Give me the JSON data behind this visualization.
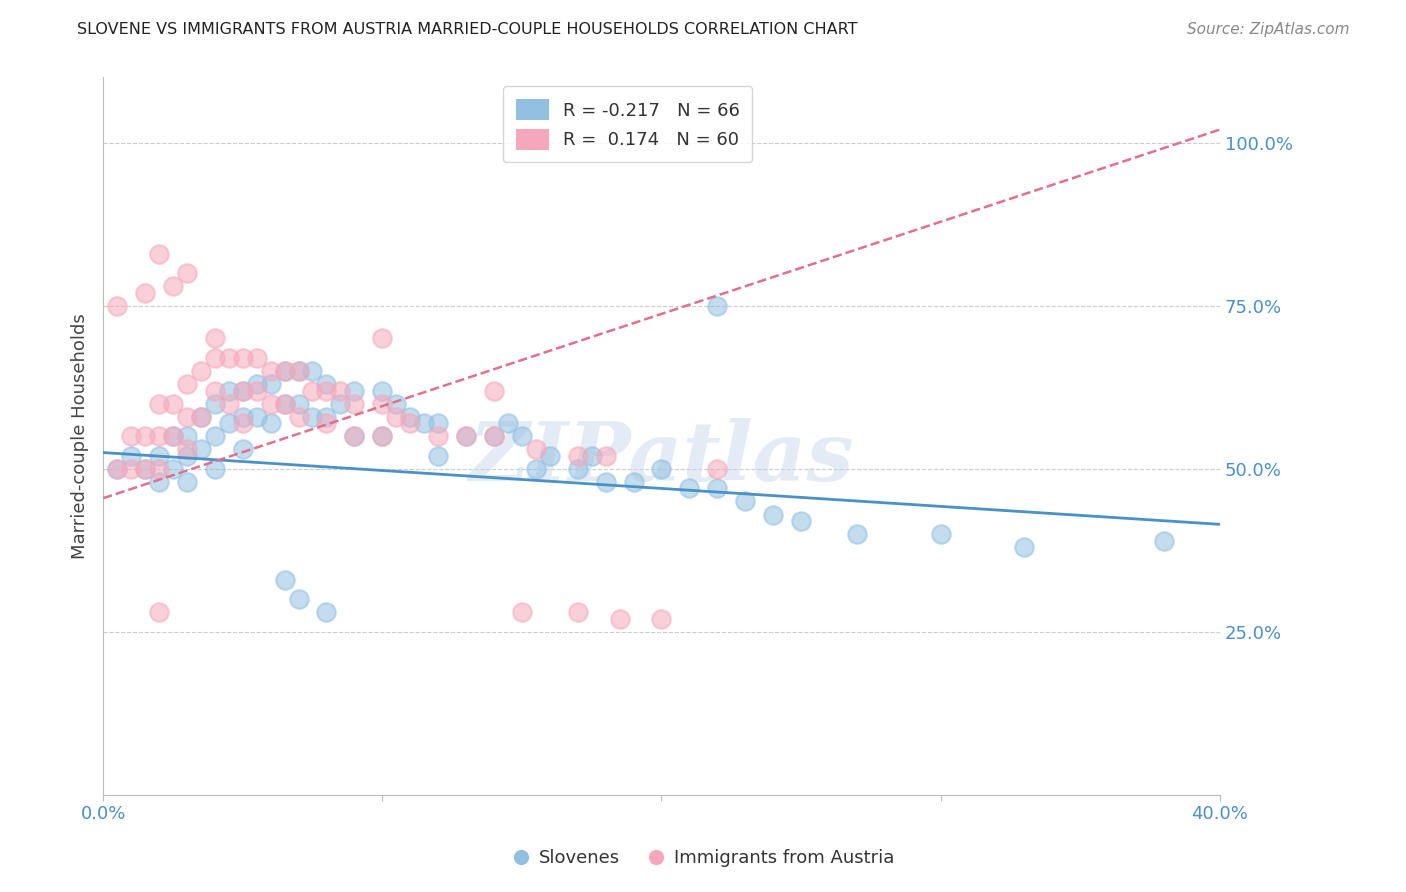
{
  "title": "SLOVENE VS IMMIGRANTS FROM AUSTRIA MARRIED-COUPLE HOUSEHOLDS CORRELATION CHART",
  "source": "Source: ZipAtlas.com",
  "ylabel": "Married-couple Households",
  "ylabel_right_ticks": [
    "100.0%",
    "75.0%",
    "50.0%",
    "25.0%"
  ],
  "ylabel_right_vals": [
    1.0,
    0.75,
    0.5,
    0.25
  ],
  "xlim": [
    0.0,
    0.4
  ],
  "ylim": [
    0.0,
    1.1
  ],
  "legend_blue_r": "-0.217",
  "legend_blue_n": "66",
  "legend_pink_r": "0.174",
  "legend_pink_n": "60",
  "blue_color": "#92C0E0",
  "pink_color": "#F5A8BB",
  "blue_line_color": "#4A90C9",
  "pink_line_color": "#E07090",
  "grid_color": "#CCCCCC",
  "watermark_text": "ZIPatlas",
  "blue_trend_x0": 0.0,
  "blue_trend_x1": 0.4,
  "blue_trend_y0": 0.525,
  "blue_trend_y1": 0.415,
  "pink_trend_x0": 0.0,
  "pink_trend_x1": 0.4,
  "pink_trend_y0": 0.455,
  "pink_trend_y1": 1.02,
  "blue_scatter_x": [
    0.005,
    0.01,
    0.015,
    0.02,
    0.02,
    0.025,
    0.025,
    0.03,
    0.03,
    0.03,
    0.035,
    0.035,
    0.04,
    0.04,
    0.04,
    0.045,
    0.045,
    0.05,
    0.05,
    0.05,
    0.055,
    0.055,
    0.06,
    0.06,
    0.065,
    0.065,
    0.07,
    0.07,
    0.075,
    0.075,
    0.08,
    0.08,
    0.085,
    0.09,
    0.09,
    0.1,
    0.1,
    0.105,
    0.11,
    0.115,
    0.12,
    0.12,
    0.13,
    0.14,
    0.145,
    0.15,
    0.155,
    0.16,
    0.17,
    0.175,
    0.18,
    0.19,
    0.2,
    0.21,
    0.22,
    0.23,
    0.24,
    0.25,
    0.27,
    0.3,
    0.33,
    0.38,
    0.22,
    0.065,
    0.07,
    0.08
  ],
  "blue_scatter_y": [
    0.5,
    0.52,
    0.5,
    0.52,
    0.48,
    0.55,
    0.5,
    0.55,
    0.52,
    0.48,
    0.58,
    0.53,
    0.6,
    0.55,
    0.5,
    0.62,
    0.57,
    0.62,
    0.58,
    0.53,
    0.63,
    0.58,
    0.63,
    0.57,
    0.65,
    0.6,
    0.65,
    0.6,
    0.65,
    0.58,
    0.63,
    0.58,
    0.6,
    0.62,
    0.55,
    0.62,
    0.55,
    0.6,
    0.58,
    0.57,
    0.57,
    0.52,
    0.55,
    0.55,
    0.57,
    0.55,
    0.5,
    0.52,
    0.5,
    0.52,
    0.48,
    0.48,
    0.5,
    0.47,
    0.47,
    0.45,
    0.43,
    0.42,
    0.4,
    0.4,
    0.38,
    0.39,
    0.75,
    0.33,
    0.3,
    0.28
  ],
  "pink_scatter_x": [
    0.005,
    0.01,
    0.01,
    0.015,
    0.015,
    0.02,
    0.02,
    0.02,
    0.025,
    0.025,
    0.03,
    0.03,
    0.03,
    0.035,
    0.035,
    0.04,
    0.04,
    0.045,
    0.045,
    0.05,
    0.05,
    0.05,
    0.055,
    0.055,
    0.06,
    0.06,
    0.065,
    0.065,
    0.07,
    0.07,
    0.075,
    0.08,
    0.08,
    0.085,
    0.09,
    0.09,
    0.1,
    0.1,
    0.105,
    0.11,
    0.12,
    0.13,
    0.14,
    0.155,
    0.17,
    0.18,
    0.02,
    0.02,
    0.04,
    0.1,
    0.14,
    0.15,
    0.17,
    0.185,
    0.2,
    0.22,
    0.005,
    0.015,
    0.025,
    0.03
  ],
  "pink_scatter_y": [
    0.5,
    0.55,
    0.5,
    0.55,
    0.5,
    0.6,
    0.55,
    0.5,
    0.6,
    0.55,
    0.63,
    0.58,
    0.53,
    0.65,
    0.58,
    0.67,
    0.62,
    0.67,
    0.6,
    0.67,
    0.62,
    0.57,
    0.67,
    0.62,
    0.65,
    0.6,
    0.65,
    0.6,
    0.65,
    0.58,
    0.62,
    0.62,
    0.57,
    0.62,
    0.6,
    0.55,
    0.6,
    0.55,
    0.58,
    0.57,
    0.55,
    0.55,
    0.55,
    0.53,
    0.52,
    0.52,
    0.83,
    0.28,
    0.7,
    0.7,
    0.62,
    0.28,
    0.28,
    0.27,
    0.27,
    0.5,
    0.75,
    0.77,
    0.78,
    0.8
  ]
}
